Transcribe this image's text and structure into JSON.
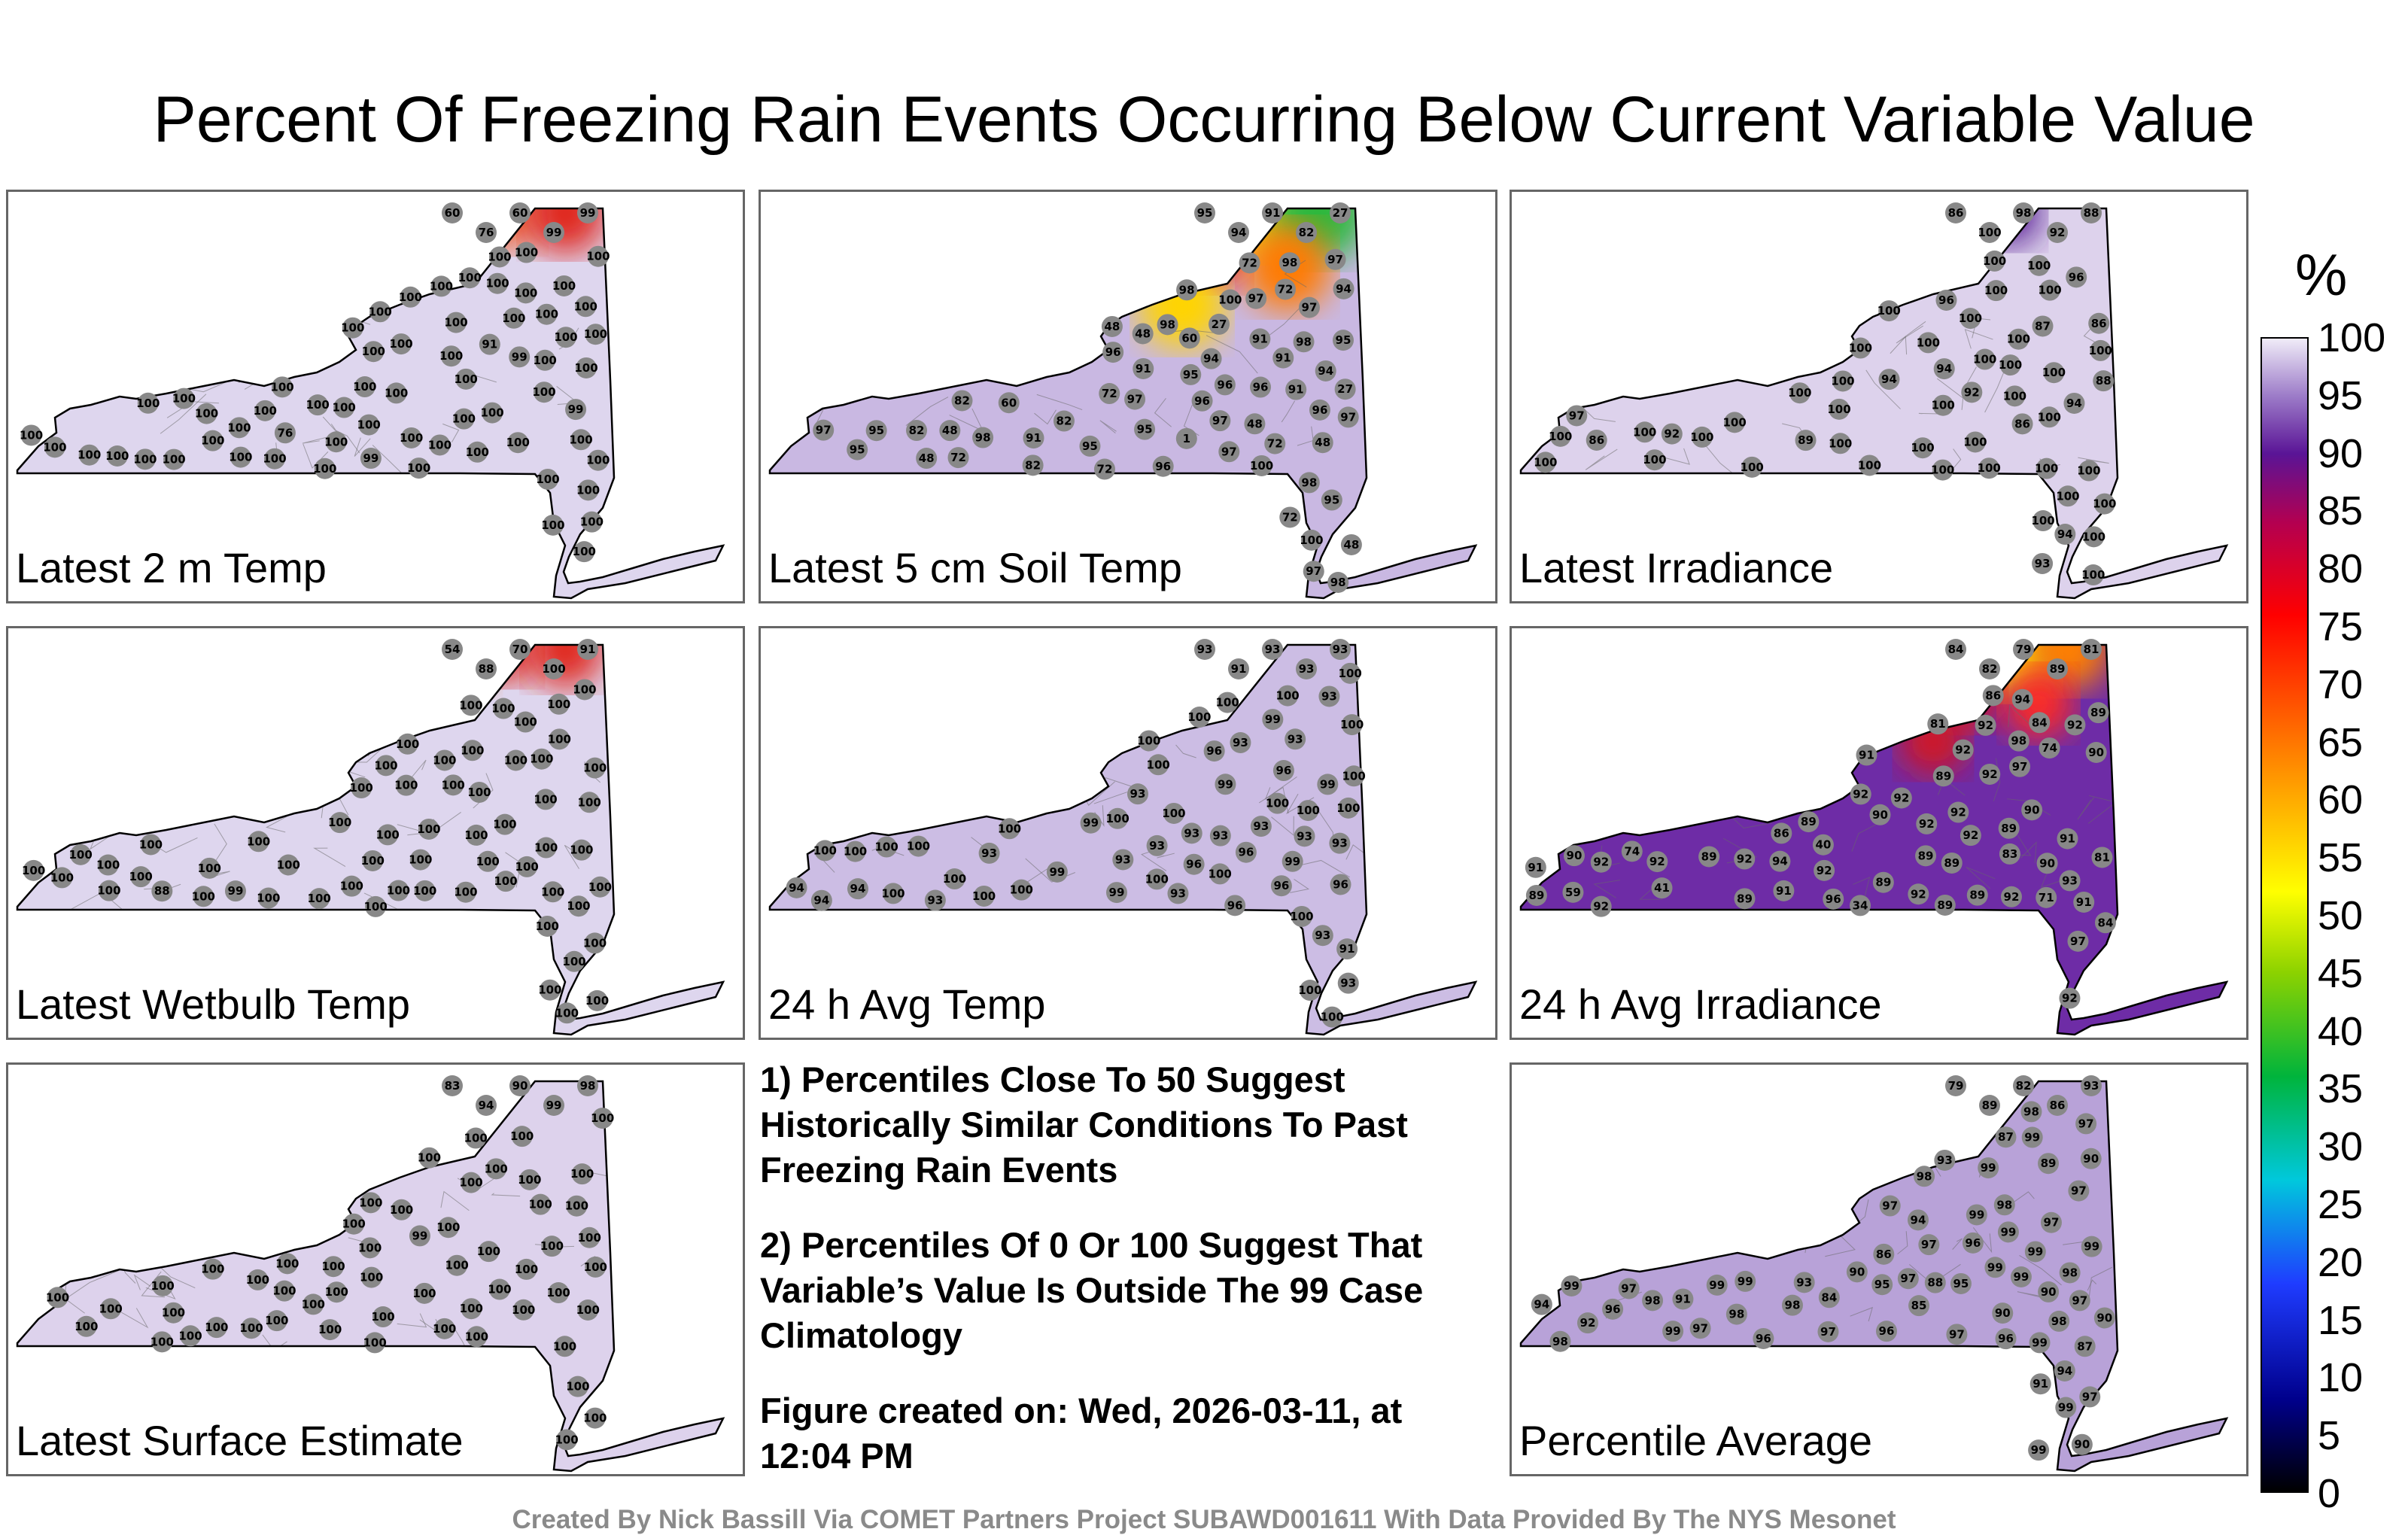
{
  "title": "Percent Of Freezing Rain Events Occurring Below Current Variable Value",
  "colorbar": {
    "unit": "%",
    "ticks": [
      "100",
      "95",
      "90",
      "85",
      "80",
      "75",
      "70",
      "65",
      "60",
      "55",
      "50",
      "45",
      "40",
      "35",
      "30",
      "25",
      "20",
      "15",
      "10",
      "5",
      "0"
    ],
    "stops": [
      {
        "v": 0,
        "c": "#000000"
      },
      {
        "v": 8,
        "c": "#00008c"
      },
      {
        "v": 18,
        "c": "#1f3cff"
      },
      {
        "v": 27,
        "c": "#00c8dc"
      },
      {
        "v": 36,
        "c": "#00b43c"
      },
      {
        "v": 45,
        "c": "#8cd200"
      },
      {
        "v": 52,
        "c": "#ffff00"
      },
      {
        "v": 62,
        "c": "#ff9600"
      },
      {
        "v": 76,
        "c": "#ff0000"
      },
      {
        "v": 84,
        "c": "#b40050"
      },
      {
        "v": 90,
        "c": "#5a1496"
      },
      {
        "v": 95,
        "c": "#9c7bc8"
      },
      {
        "v": 100,
        "c": "#f0ecf8"
      }
    ]
  },
  "panels": [
    {
      "label": "Latest 2 m Temp",
      "base": "#ded6ee",
      "hotspots": [
        {
          "v": 60,
          "c": "#e0261e"
        },
        {
          "v": 76,
          "c": "#f05a28"
        },
        {
          "v": 60,
          "c": "#e0261e"
        }
      ],
      "stations": [
        "60",
        "76",
        "60",
        "99",
        "99",
        "91",
        "99",
        "76",
        "99",
        "100",
        "100",
        "100",
        "99",
        "100",
        "100",
        "100",
        "100",
        "100",
        "100",
        "100",
        "100",
        "100",
        "100",
        "100",
        "100",
        "100",
        "100",
        "100",
        "100",
        "100",
        "100",
        "100",
        "100",
        "100",
        "100",
        "100",
        "100",
        "100",
        "100",
        "100",
        "100",
        "100",
        "100",
        "100",
        "100",
        "100",
        "100",
        "100",
        "100",
        "100",
        "100",
        "100",
        "100",
        "100",
        "100",
        "100",
        "100",
        "100",
        "100",
        "100",
        "100",
        "100",
        "100",
        "100",
        "100",
        "100",
        "100",
        "100",
        "100",
        "100"
      ]
    },
    {
      "label": "Latest 5 cm Soil Temp",
      "base": "#c9b8e2",
      "hotspots": [
        {
          "v": 27,
          "c": "#f8a800"
        },
        {
          "v": 48,
          "c": "#ffe600"
        },
        {
          "v": 27,
          "c": "#2fb83c"
        },
        {
          "v": 82,
          "c": "#e8141e"
        },
        {
          "v": 48,
          "c": "#ff7a00"
        },
        {
          "v": 48,
          "c": "#ffd400"
        }
      ],
      "stations": [
        "95",
        "94",
        "91",
        "82",
        "27",
        "72",
        "95",
        "60",
        "48",
        "82",
        "72",
        "94",
        "72",
        "91",
        "48",
        "27",
        "48",
        "95",
        "60",
        "27",
        "82",
        "72",
        "48",
        "48",
        "72",
        "96",
        "1",
        "82",
        "72",
        "48",
        "95",
        "91",
        "97",
        "91",
        "95",
        "97",
        "98",
        "100",
        "98",
        "97",
        "97",
        "97",
        "96",
        "95",
        "98",
        "98",
        "96",
        "97",
        "97",
        "96",
        "95",
        "94",
        "48",
        "72",
        "100",
        "97",
        "96",
        "98",
        "100",
        "91",
        "91",
        "97",
        "95",
        "96",
        "82",
        "98",
        "98",
        "94"
      ]
    },
    {
      "label": "Latest Irradiance",
      "base": "#ddd2ec",
      "hotspots": [
        {
          "v": 86,
          "c": "#4b1a8a"
        },
        {
          "v": 88,
          "c": "#5a2096"
        }
      ],
      "stations": [
        "86",
        "100",
        "98",
        "92",
        "88",
        "94",
        "100",
        "100",
        "100",
        "100",
        "100",
        "93",
        "87",
        "100",
        "100",
        "96",
        "94",
        "100",
        "89",
        "86",
        "100",
        "94",
        "92",
        "97",
        "86",
        "94",
        "100",
        "100",
        "100",
        "100",
        "100",
        "100",
        "100",
        "100",
        "96",
        "88",
        "86",
        "92",
        "100",
        "100",
        "100",
        "100",
        "100",
        "100",
        "100",
        "100",
        "100",
        "100",
        "100",
        "100",
        "100",
        "100",
        "100",
        "100",
        "100",
        "100",
        "100",
        "100",
        "100",
        "100"
      ]
    },
    {
      "label": "Latest Wetbulb Temp",
      "base": "#ded6ee",
      "hotspots": [
        {
          "v": 54,
          "c": "#f07020"
        },
        {
          "v": 88,
          "c": "#e0261e"
        },
        {
          "v": 70,
          "c": "#e0261e"
        }
      ],
      "stations": [
        "54",
        "88",
        "70",
        "100",
        "91",
        "99",
        "88",
        "100",
        "100",
        "100",
        "100",
        "100",
        "100",
        "100",
        "100",
        "100",
        "100",
        "100",
        "100",
        "100",
        "100",
        "100",
        "100",
        "100",
        "100",
        "100",
        "100",
        "100",
        "100",
        "100",
        "100",
        "100",
        "100",
        "100",
        "100",
        "100",
        "100",
        "100",
        "100",
        "100",
        "100",
        "100",
        "100",
        "100",
        "100",
        "100",
        "100",
        "100",
        "100",
        "100",
        "100",
        "100",
        "100",
        "100",
        "100",
        "100",
        "100",
        "100",
        "100",
        "100",
        "100",
        "100",
        "100",
        "100",
        "100"
      ]
    },
    {
      "label": "24 h Avg Temp",
      "base": "#ccbde4",
      "hotspots": [],
      "stations": [
        "93",
        "91",
        "93",
        "93",
        "93",
        "93",
        "93",
        "93",
        "93",
        "93",
        "93",
        "93",
        "93",
        "91",
        "93",
        "93",
        "94",
        "93",
        "93",
        "93",
        "93",
        "96",
        "93",
        "94",
        "93",
        "96",
        "99",
        "96",
        "99",
        "99",
        "100",
        "100",
        "99",
        "100",
        "99",
        "100",
        "100",
        "99",
        "100",
        "100",
        "100",
        "100",
        "100",
        "99",
        "100",
        "100",
        "100",
        "100",
        "100",
        "100",
        "100",
        "96",
        "96",
        "100",
        "100",
        "100",
        "100",
        "100",
        "96",
        "94",
        "100",
        "100",
        "100",
        "100",
        "100",
        "96"
      ]
    },
    {
      "label": "24 h Avg Irradiance",
      "base": "#6e2ca6",
      "hotspots": [
        {
          "v": 34,
          "c": "#78d250"
        },
        {
          "v": 41,
          "c": "#ffe600"
        },
        {
          "v": 59,
          "c": "#ff8000"
        },
        {
          "v": 71,
          "c": "#e8141e"
        },
        {
          "v": 81,
          "c": "#ff2a20"
        },
        {
          "v": 85,
          "c": "#d21420"
        }
      ],
      "stations": [
        "84",
        "82",
        "79",
        "89",
        "81",
        "89",
        "90",
        "90",
        "89",
        "71",
        "89",
        "91",
        "89",
        "83",
        "89",
        "84",
        "90",
        "91",
        "81",
        "74",
        "89",
        "89",
        "90",
        "86",
        "81",
        "89",
        "89",
        "89",
        "84",
        "92",
        "92",
        "90",
        "91",
        "41",
        "74",
        "59",
        "92",
        "92",
        "92",
        "92",
        "34",
        "40",
        "86",
        "91",
        "89",
        "92",
        "92",
        "92",
        "92",
        "92",
        "92",
        "94",
        "92",
        "93",
        "94",
        "92",
        "97",
        "96",
        "98",
        "97",
        "92",
        "92",
        "91",
        "92",
        "89"
      ]
    },
    {
      "label": "Latest Surface Estimate",
      "base": "#ddd2ec",
      "hotspots": [],
      "stations": [
        "83",
        "94",
        "90",
        "99",
        "98",
        "100",
        "100",
        "99",
        "100",
        "100",
        "100",
        "100",
        "100",
        "100",
        "100",
        "100",
        "100",
        "100",
        "100",
        "100",
        "100",
        "100",
        "100",
        "100",
        "100",
        "100",
        "100",
        "100",
        "100",
        "100",
        "100",
        "100",
        "100",
        "100",
        "100",
        "100",
        "100",
        "100",
        "100",
        "100",
        "100",
        "100",
        "100",
        "100",
        "100",
        "100",
        "100",
        "100",
        "100",
        "100",
        "100",
        "100",
        "100",
        "100",
        "100",
        "100",
        "100",
        "100",
        "100",
        "100"
      ]
    },
    {
      "label": "Percentile Average",
      "base": "#b8a2d8",
      "hotspots": [],
      "stations": [
        "79",
        "89",
        "82",
        "86",
        "93",
        "94",
        "90",
        "93",
        "97",
        "86",
        "97",
        "87",
        "88",
        "91",
        "94",
        "90",
        "92",
        "96",
        "97",
        "97",
        "96",
        "95",
        "89",
        "85",
        "87",
        "90",
        "90",
        "90",
        "84",
        "97",
        "96",
        "97",
        "97",
        "97",
        "97",
        "98",
        "97",
        "98",
        "95",
        "94",
        "96",
        "98",
        "98",
        "99",
        "98",
        "99",
        "99",
        "98",
        "98",
        "99",
        "99",
        "99",
        "99",
        "98",
        "99",
        "96",
        "99",
        "99",
        "91",
        "93",
        "97",
        "97",
        "90",
        "99",
        "99",
        "99",
        "99",
        "99",
        "98"
      ]
    }
  ],
  "notes": [
    "1) Percentiles Close To 50 Suggest Historically Similar Conditions To Past Freezing Rain Events",
    "2) Percentiles Of 0 Or 100 Suggest That Variable’s Value Is Outside The 99 Case Climatology",
    "Figure created on: Wed, 2026-03-11, at 12:04 PM"
  ],
  "credit": "Created By Nick Bassill Via COMET Partners Project SUBAWD001611 With Data Provided By The NYS Mesonet"
}
